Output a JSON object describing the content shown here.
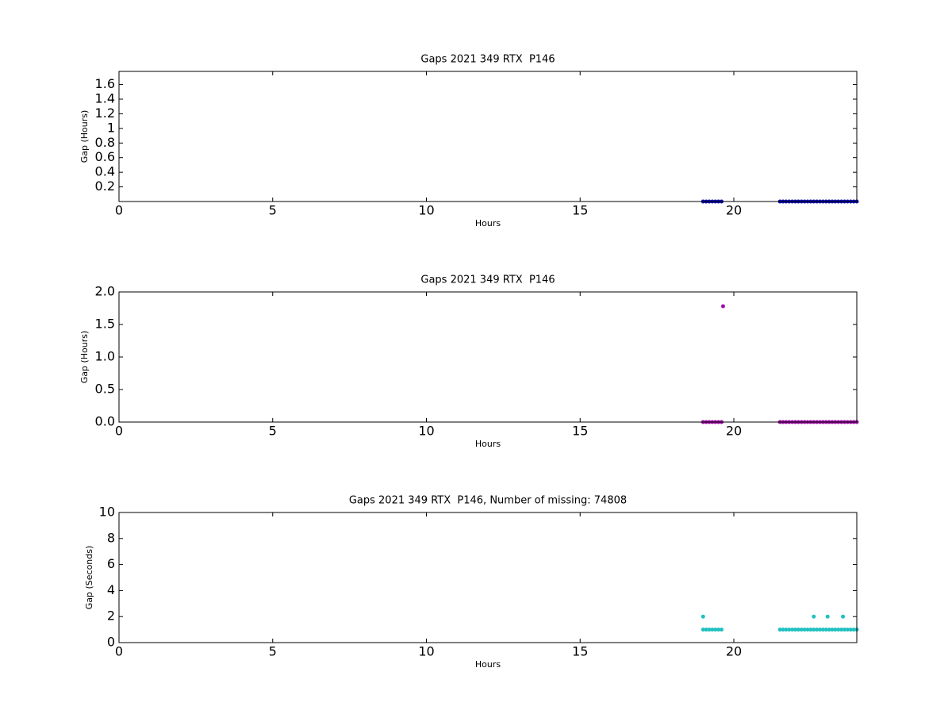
{
  "chart_data": [
    {
      "type": "scatter",
      "title": "Gaps 2021 349 RTX  P146",
      "x_label": "Hours",
      "y_label": "Gap (Hours)",
      "xlim": [
        0,
        24
      ],
      "xticks": [
        0,
        5,
        10,
        15,
        20
      ],
      "ylim": [
        0,
        1.78
      ],
      "yticks": [
        0.2,
        0.4,
        0.6,
        0.8,
        1.0,
        1.2,
        1.4,
        1.6
      ],
      "series": [
        {
          "color": "#0a0aa8",
          "x": [
            19.0,
            19.1,
            19.2,
            19.3,
            19.4,
            19.5,
            19.6,
            21.5,
            21.6,
            21.7,
            21.8,
            21.9,
            22.0,
            22.1,
            22.2,
            22.3,
            22.4,
            22.5,
            22.6,
            22.7,
            22.8,
            22.9,
            23.0,
            23.1,
            23.2,
            23.3,
            23.4,
            23.5,
            23.6,
            23.7,
            23.8,
            23.9,
            24.0
          ],
          "values": [
            0.000278,
            0.000278,
            0.000278,
            0.000278,
            0.000278,
            0.000278,
            0.000278,
            0.000278,
            0.000278,
            0.000278,
            0.000278,
            0.000278,
            0.000278,
            0.000278,
            0.000278,
            0.000278,
            0.000278,
            0.000278,
            0.000278,
            0.000278,
            0.000278,
            0.000278,
            0.000278,
            0.000278,
            0.000278,
            0.000278,
            0.000278,
            0.000278,
            0.000278,
            0.000278,
            0.000278,
            0.000278,
            0.000278
          ]
        }
      ]
    },
    {
      "type": "scatter",
      "title": "Gaps 2021 349 RTX  P146",
      "x_label": "Hours",
      "y_label": "Gap (Hours)",
      "xlim": [
        0,
        24
      ],
      "xticks": [
        0,
        5,
        10,
        15,
        20
      ],
      "ylim": [
        0,
        2
      ],
      "yticks": [
        {
          "value": 0,
          "label": "0.0"
        },
        {
          "value": 0.5,
          "label": "0.5"
        },
        {
          "value": 1,
          "label": "1.0"
        },
        {
          "value": 1.5,
          "label": "1.5"
        },
        {
          "value": 2,
          "label": "2.0"
        }
      ],
      "series": [
        {
          "color": "#a010a8",
          "x": [
            19.0,
            19.1,
            19.2,
            19.3,
            19.4,
            19.5,
            19.6,
            21.5,
            21.6,
            21.7,
            21.8,
            21.9,
            22.0,
            22.1,
            22.2,
            22.3,
            22.4,
            22.5,
            22.6,
            22.7,
            22.8,
            22.9,
            23.0,
            23.1,
            23.2,
            23.3,
            23.4,
            23.5,
            23.6,
            23.7,
            23.8,
            23.9,
            24.0,
            19.65
          ],
          "values": [
            0.000278,
            0.000278,
            0.000278,
            0.000278,
            0.000278,
            0.000278,
            0.000278,
            0.000278,
            0.000278,
            0.000278,
            0.000278,
            0.000278,
            0.000278,
            0.000278,
            0.000278,
            0.000278,
            0.000278,
            0.000278,
            0.000278,
            0.000278,
            0.000278,
            0.000278,
            0.000278,
            0.000278,
            0.000278,
            0.000278,
            0.000278,
            0.000278,
            0.000278,
            0.000278,
            0.000278,
            0.000278,
            0.000278,
            1.78
          ]
        }
      ]
    },
    {
      "type": "scatter",
      "title": "Gaps 2021 349 RTX  P146, Number of missing: 74808",
      "x_label": "Hours",
      "y_label": "Gap (Seconds)",
      "xlim": [
        0,
        24
      ],
      "xticks": [
        0,
        5,
        10,
        15,
        20
      ],
      "ylim": [
        0,
        10
      ],
      "yticks": [
        0,
        2,
        4,
        6,
        8,
        10
      ],
      "series": [
        {
          "color": "#20c0c0",
          "x": [
            19.0,
            19.1,
            19.2,
            19.3,
            19.4,
            19.5,
            19.6,
            21.5,
            21.6,
            21.7,
            21.8,
            21.9,
            22.0,
            22.1,
            22.2,
            22.3,
            22.4,
            22.5,
            22.6,
            22.7,
            22.8,
            22.9,
            23.0,
            23.1,
            23.2,
            23.3,
            23.4,
            23.5,
            23.6,
            23.7,
            23.8,
            23.9,
            24.0,
            19.0,
            22.6,
            23.05,
            23.55
          ],
          "values": [
            1,
            1,
            1,
            1,
            1,
            1,
            1,
            1,
            1,
            1,
            1,
            1,
            1,
            1,
            1,
            1,
            1,
            1,
            1,
            1,
            1,
            1,
            1,
            1,
            1,
            1,
            1,
            1,
            1,
            1,
            1,
            1,
            1,
            2,
            2,
            2,
            2
          ]
        }
      ]
    }
  ]
}
